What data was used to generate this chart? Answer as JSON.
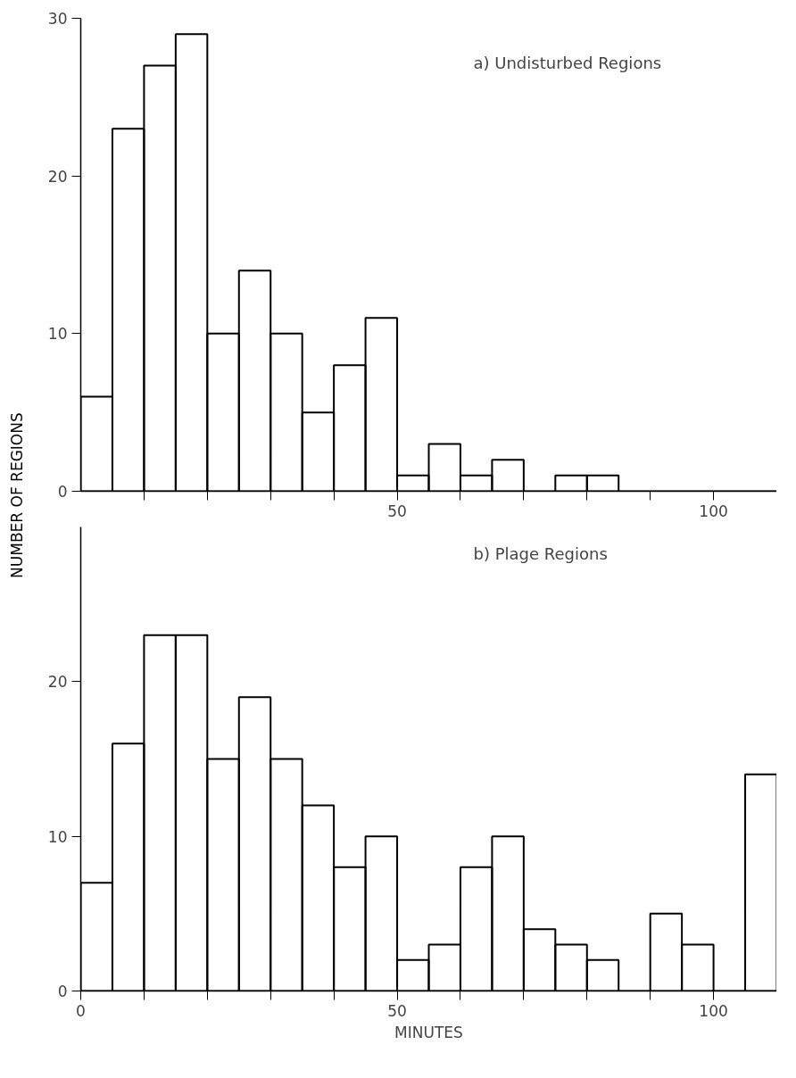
{
  "chart_data": [
    {
      "type": "histogram",
      "annotations": [
        "a) Undisturbed Regions"
      ],
      "ylabel": "NUMBER OF REGIONS",
      "bins": [
        0,
        5,
        10,
        15,
        20,
        25,
        30,
        35,
        40,
        45,
        50,
        55,
        60,
        65,
        70,
        75,
        80,
        85,
        90,
        95,
        100,
        105,
        110
      ],
      "values": [
        6,
        23,
        27,
        29,
        10,
        14,
        10,
        5,
        8,
        11,
        1,
        3,
        1,
        2,
        0,
        1,
        1,
        0,
        0,
        0,
        0,
        0
      ],
      "color": "#000000",
      "xlim": [
        0,
        110
      ],
      "ylim": [
        0,
        30
      ],
      "xticks": [
        {
          "value": 10,
          "label": null
        },
        {
          "value": 20,
          "label": null
        },
        {
          "value": 30,
          "label": null
        },
        {
          "value": 40,
          "label": null
        },
        50,
        {
          "value": 60,
          "label": null
        },
        {
          "value": 70,
          "label": null
        },
        {
          "value": 80,
          "label": null
        },
        {
          "value": 90,
          "label": null
        },
        100
      ],
      "yticks": [
        0,
        10,
        20,
        30
      ],
      "grid": false
    },
    {
      "type": "histogram",
      "annotations": [
        "b) Plage Regions"
      ],
      "xlabel": "MINUTES",
      "bins": [
        0,
        5,
        10,
        15,
        20,
        25,
        30,
        35,
        40,
        45,
        50,
        55,
        60,
        65,
        70,
        75,
        80,
        85,
        90,
        95,
        100,
        105,
        110
      ],
      "values": [
        7,
        16,
        23,
        23,
        15,
        19,
        15,
        12,
        8,
        10,
        2,
        3,
        8,
        10,
        4,
        3,
        2,
        0,
        5,
        3,
        0,
        14
      ],
      "color": "#000000",
      "xlim": [
        0,
        110
      ],
      "ylim": [
        0,
        30
      ],
      "xticks": [
        0,
        {
          "value": 10,
          "label": null
        },
        {
          "value": 20,
          "label": null
        },
        {
          "value": 30,
          "label": null
        },
        {
          "value": 40,
          "label": null
        },
        50,
        {
          "value": 60,
          "label": null
        },
        {
          "value": 70,
          "label": null
        },
        {
          "value": 80,
          "label": null
        },
        {
          "value": 90,
          "label": null
        },
        100
      ],
      "yticks": [
        0,
        10,
        20
      ],
      "grid": false
    }
  ]
}
